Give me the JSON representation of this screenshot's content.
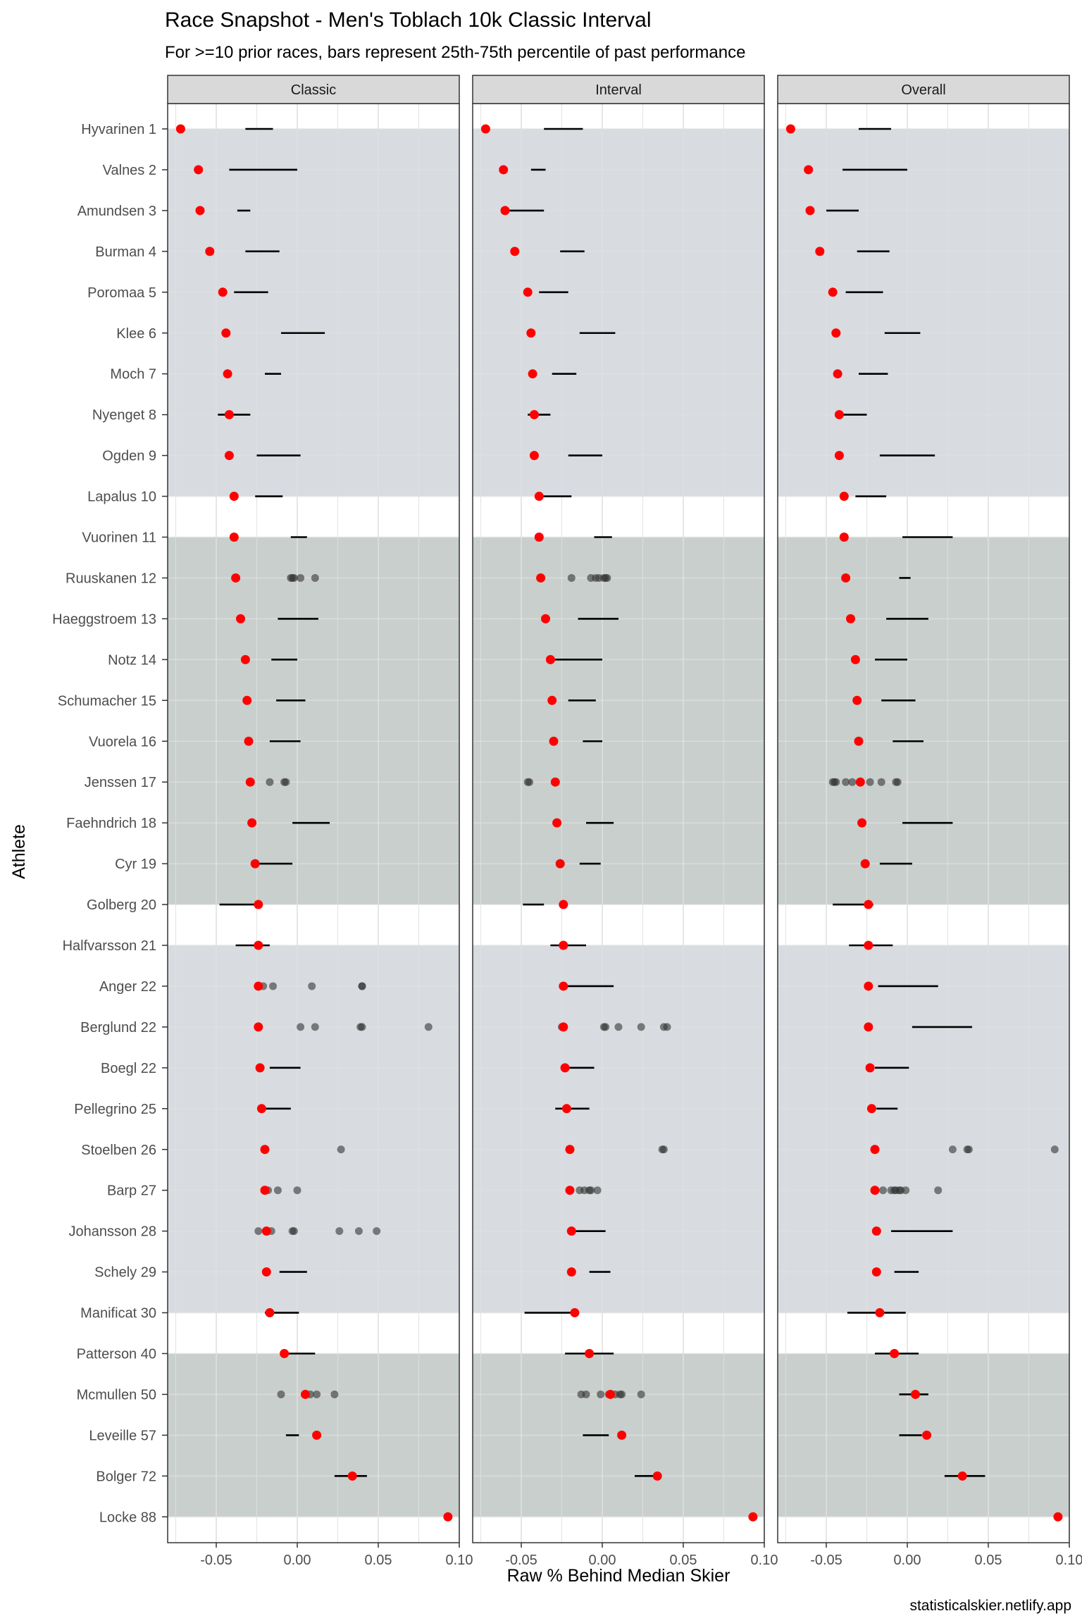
{
  "chart_data": {
    "type": "scatter",
    "title": "Race Snapshot -  Men's Toblach 10k Classic Interval",
    "subtitle": "For >=10 prior races, bars represent 25th-75th percentile of past performance",
    "xlabel": "Raw % Behind Median Skier",
    "ylabel": "Athlete",
    "caption": "statisticalskier.netlify.app",
    "xlim": [
      -0.08,
      0.1
    ],
    "x_ticks": [
      -0.05,
      0.0,
      0.05,
      0.1
    ],
    "x_tick_labels": [
      "-0.05",
      "0.00",
      "0.05",
      "0.10"
    ],
    "grid": true,
    "colors": {
      "current_point": "#ff0000",
      "past_point": "#333333",
      "band_a": "#d8dbe0",
      "band_b": "#c8cfcc",
      "strip": "#d9d9d9",
      "grid": "#e0e0e0"
    },
    "facets": [
      "Classic",
      "Interval",
      "Overall"
    ],
    "bands": [
      {
        "first": 0,
        "last": 9,
        "color": "band_a"
      },
      {
        "first": 10,
        "last": 19,
        "color": "band_b"
      },
      {
        "first": 20,
        "last": 29,
        "color": "band_a"
      },
      {
        "first": 30,
        "last": 34,
        "color": "band_b"
      }
    ],
    "athletes": [
      "Hyvarinen 1",
      "Valnes 2",
      "Amundsen 3",
      "Burman 4",
      "Poromaa 5",
      "Klee 6",
      "Moch 7",
      "Nyenget 8",
      "Ogden 9",
      "Lapalus 10",
      "Vuorinen 11",
      "Ruuskanen 12",
      "Haeggstroem 13",
      "Notz 14",
      "Schumacher 15",
      "Vuorela 16",
      "Jenssen 17",
      "Faehndrich 18",
      "Cyr 19",
      "Golberg 20",
      "Halfvarsson 21",
      "Anger 22",
      "Berglund 22",
      "Boegl 22",
      "Pellegrino 25",
      "Stoelben 26",
      "Barp 27",
      "Johansson 28",
      "Schely 29",
      "Manificat 30",
      "Patterson 40",
      "Mcmullen 50",
      "Leveille 57",
      "Bolger 72",
      "Locke 88"
    ],
    "current": [
      -0.072,
      -0.061,
      -0.06,
      -0.054,
      -0.046,
      -0.044,
      -0.043,
      -0.042,
      -0.042,
      -0.039,
      -0.039,
      -0.038,
      -0.035,
      -0.032,
      -0.031,
      -0.03,
      -0.029,
      -0.028,
      -0.026,
      -0.024,
      -0.024,
      -0.024,
      -0.024,
      -0.023,
      -0.022,
      -0.02,
      -0.02,
      -0.019,
      -0.019,
      -0.017,
      -0.008,
      0.005,
      0.012,
      0.034,
      0.093
    ],
    "series": [
      {
        "name": "Classic",
        "iqr": [
          [
            -0.032,
            -0.015
          ],
          [
            -0.042,
            0.0
          ],
          [
            -0.037,
            -0.029
          ],
          [
            -0.032,
            -0.011
          ],
          [
            -0.039,
            -0.018
          ],
          [
            -0.01,
            0.017
          ],
          [
            -0.02,
            -0.01
          ],
          [
            -0.049,
            -0.029
          ],
          [
            -0.025,
            0.002
          ],
          [
            -0.026,
            -0.009
          ],
          [
            -0.004,
            0.006
          ],
          null,
          [
            -0.012,
            0.013
          ],
          [
            -0.016,
            0.0
          ],
          [
            -0.013,
            0.005
          ],
          [
            -0.017,
            0.002
          ],
          null,
          [
            -0.003,
            0.02
          ],
          [
            -0.025,
            -0.003
          ],
          [
            -0.048,
            -0.024
          ],
          [
            -0.038,
            -0.017
          ],
          null,
          null,
          [
            -0.017,
            0.002
          ],
          [
            -0.024,
            -0.004
          ],
          null,
          null,
          null,
          [
            -0.011,
            0.006
          ],
          [
            -0.02,
            0.001
          ],
          [
            -0.01,
            0.011
          ],
          null,
          [
            -0.007,
            0.001
          ],
          [
            0.023,
            0.043
          ],
          null
        ],
        "past": [
          null,
          null,
          null,
          null,
          null,
          null,
          null,
          null,
          null,
          null,
          null,
          [
            -0.004,
            -0.003,
            -0.002,
            0.002,
            0.011
          ],
          null,
          null,
          null,
          null,
          [
            -0.017,
            -0.008,
            -0.007
          ],
          null,
          null,
          null,
          null,
          [
            -0.024,
            -0.021,
            -0.015,
            0.009,
            0.04,
            0.04
          ],
          [
            0.002,
            0.011,
            0.039,
            0.04,
            0.081
          ],
          null,
          null,
          [
            0.027
          ],
          [
            -0.018,
            -0.012,
            0.0
          ],
          [
            -0.024,
            -0.016,
            -0.003,
            -0.002,
            0.026,
            0.038,
            0.049
          ],
          null,
          null,
          null,
          [
            -0.01,
            0.008,
            0.012,
            0.023
          ],
          null,
          null,
          null
        ]
      },
      {
        "name": "Interval",
        "iqr": [
          [
            -0.036,
            -0.012
          ],
          [
            -0.044,
            -0.035
          ],
          [
            -0.058,
            -0.036
          ],
          [
            -0.026,
            -0.011
          ],
          [
            -0.039,
            -0.021
          ],
          [
            -0.014,
            0.008
          ],
          [
            -0.031,
            -0.016
          ],
          [
            -0.046,
            -0.032
          ],
          [
            -0.021,
            0.0
          ],
          [
            -0.039,
            -0.019
          ],
          [
            -0.005,
            0.006
          ],
          null,
          [
            -0.015,
            0.01
          ],
          [
            -0.03,
            0.0
          ],
          [
            -0.021,
            -0.004
          ],
          [
            -0.012,
            0.0
          ],
          null,
          [
            -0.01,
            0.007
          ],
          [
            -0.014,
            -0.001
          ],
          [
            -0.049,
            -0.036
          ],
          [
            -0.032,
            -0.01
          ],
          [
            -0.024,
            0.007
          ],
          null,
          [
            -0.024,
            -0.005
          ],
          [
            -0.029,
            -0.008
          ],
          null,
          null,
          [
            -0.02,
            0.002
          ],
          [
            -0.008,
            0.005
          ],
          [
            -0.048,
            -0.016
          ],
          [
            -0.023,
            0.007
          ],
          null,
          [
            -0.012,
            0.004
          ],
          [
            0.02,
            0.034
          ],
          null
        ],
        "past": [
          null,
          null,
          null,
          null,
          null,
          null,
          null,
          null,
          null,
          null,
          null,
          [
            -0.019,
            -0.007,
            -0.004,
            -0.002,
            0.001,
            0.002,
            0.003
          ],
          null,
          null,
          null,
          null,
          [
            -0.046,
            -0.045
          ],
          null,
          null,
          null,
          null,
          null,
          [
            -0.025,
            0.001,
            0.002,
            0.01,
            0.024,
            0.038,
            0.04
          ],
          null,
          null,
          [
            0.037,
            0.038
          ],
          [
            -0.014,
            -0.011,
            -0.008,
            -0.007,
            -0.003
          ],
          null,
          null,
          null,
          null,
          [
            -0.013,
            -0.01,
            -0.001,
            0.004,
            0.008,
            0.011,
            0.012,
            0.024
          ],
          null,
          null,
          null
        ]
      },
      {
        "name": "Overall",
        "iqr": [
          [
            -0.03,
            -0.01
          ],
          [
            -0.04,
            0.0
          ],
          [
            -0.05,
            -0.03
          ],
          [
            -0.031,
            -0.011
          ],
          [
            -0.038,
            -0.015
          ],
          [
            -0.014,
            0.008
          ],
          [
            -0.03,
            -0.012
          ],
          [
            -0.044,
            -0.025
          ],
          [
            -0.017,
            0.017
          ],
          [
            -0.032,
            -0.013
          ],
          [
            -0.003,
            0.028
          ],
          [
            -0.005,
            0.002
          ],
          [
            -0.013,
            0.013
          ],
          [
            -0.02,
            0.0
          ],
          [
            -0.016,
            0.005
          ],
          [
            -0.009,
            0.01
          ],
          null,
          [
            -0.003,
            0.028
          ],
          [
            -0.017,
            0.003
          ],
          [
            -0.046,
            -0.021
          ],
          [
            -0.036,
            -0.009
          ],
          [
            -0.018,
            0.019
          ],
          [
            0.003,
            0.04
          ],
          [
            -0.02,
            0.001
          ],
          [
            -0.019,
            -0.006
          ],
          null,
          null,
          [
            -0.01,
            0.028
          ],
          [
            -0.008,
            0.007
          ],
          [
            -0.037,
            -0.001
          ],
          [
            -0.02,
            0.007
          ],
          [
            -0.005,
            0.013
          ],
          [
            -0.005,
            0.009
          ],
          [
            0.023,
            0.048
          ],
          null
        ],
        "past": [
          null,
          null,
          null,
          null,
          null,
          null,
          null,
          null,
          null,
          null,
          null,
          null,
          null,
          null,
          null,
          null,
          [
            -0.046,
            -0.045,
            -0.044,
            -0.038,
            -0.034,
            -0.029,
            -0.023,
            -0.016,
            -0.007,
            -0.006
          ],
          null,
          null,
          null,
          null,
          null,
          null,
          null,
          null,
          [
            0.028,
            0.037,
            0.038,
            0.091
          ],
          [
            -0.015,
            -0.01,
            -0.008,
            -0.007,
            -0.005,
            -0.004,
            -0.001,
            0.019
          ],
          null,
          null,
          null,
          null,
          null,
          null,
          null,
          null
        ]
      }
    ]
  }
}
